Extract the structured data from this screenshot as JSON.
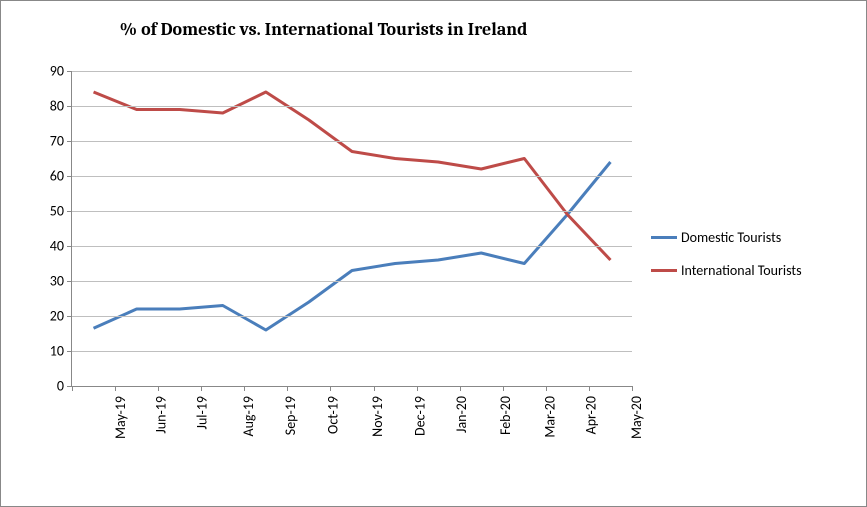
{
  "chart": {
    "type": "line",
    "title": "% of Domestic vs. International Tourists in Ireland",
    "title_fontsize": 18,
    "title_fontweight": "bold",
    "background_color": "#ffffff",
    "border_color": "#888888",
    "grid_color": "#bfbfbf",
    "axis_color": "#888888",
    "tick_fontsize": 14,
    "tick_font_family": "Calibri, Arial, sans-serif",
    "legend_fontsize": 14,
    "line_width": 3,
    "ylim": [
      0,
      90
    ],
    "ytick_step": 10,
    "yticks": [
      0,
      10,
      20,
      30,
      40,
      50,
      60,
      70,
      80,
      90
    ],
    "categories": [
      "May-19",
      "Jun-19",
      "Jul-19",
      "Aug-19",
      "Sep-19",
      "Oct-19",
      "Nov-19",
      "Dec-19",
      "Jan-20",
      "Feb-20",
      "Mar-20",
      "Apr-20",
      "May-20"
    ],
    "series": [
      {
        "name": "Domestic Tourists",
        "color": "#4a7ebb",
        "values": [
          16.5,
          22,
          22,
          23,
          16,
          24,
          33,
          35,
          36,
          38,
          35,
          49,
          64
        ]
      },
      {
        "name": "International Tourists",
        "color": "#be4b48",
        "values": [
          84,
          79,
          79,
          78,
          84,
          76,
          67,
          65,
          64,
          62,
          65,
          49,
          36
        ]
      }
    ],
    "legend_position": "right"
  }
}
